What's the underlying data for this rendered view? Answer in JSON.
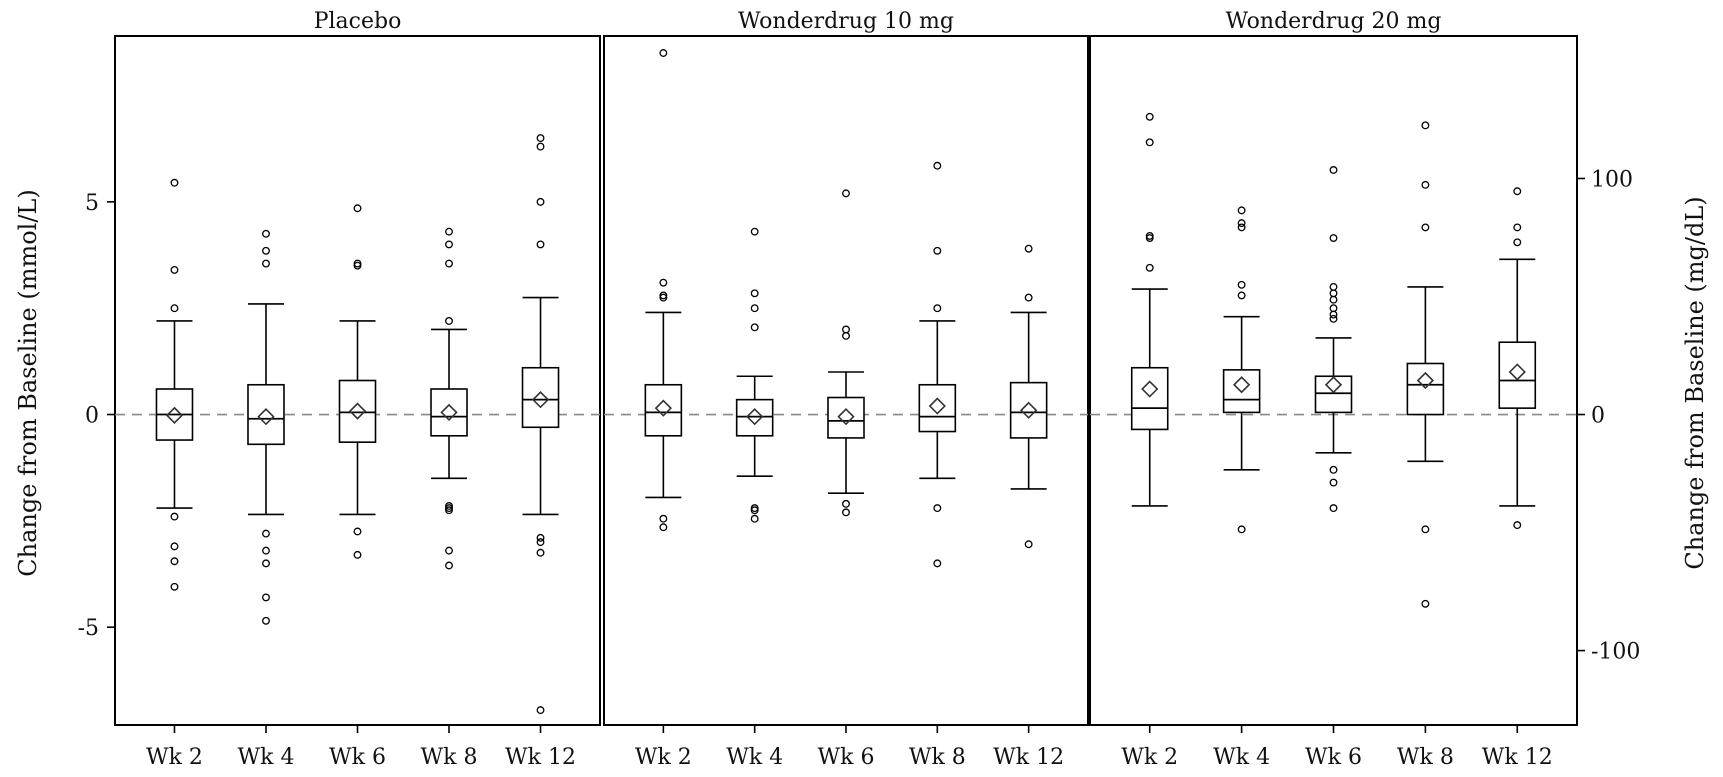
{
  "chart_data": {
    "type": "box",
    "panels": [
      {
        "title": "Placebo",
        "groups": [
          {
            "label": "Wk 2",
            "q1": -0.6,
            "median": 0.0,
            "q3": 0.6,
            "whisker_low": -2.2,
            "whisker_high": 2.2,
            "mean": -0.02,
            "outliers": [
              5.45,
              3.4,
              2.5,
              -2.4,
              -3.1,
              -3.45,
              -4.05
            ]
          },
          {
            "label": "Wk 4",
            "q1": -0.7,
            "median": -0.1,
            "q3": 0.7,
            "whisker_low": -2.35,
            "whisker_high": 2.6,
            "mean": -0.05,
            "outliers": [
              4.25,
              3.85,
              3.55,
              -2.8,
              -3.2,
              -3.5,
              -4.3,
              -4.85
            ]
          },
          {
            "label": "Wk 6",
            "q1": -0.65,
            "median": 0.05,
            "q3": 0.8,
            "whisker_low": -2.35,
            "whisker_high": 2.2,
            "mean": 0.08,
            "outliers": [
              4.85,
              3.55,
              3.5,
              -2.75,
              -3.3
            ]
          },
          {
            "label": "Wk 8",
            "q1": -0.5,
            "median": -0.05,
            "q3": 0.6,
            "whisker_low": -1.5,
            "whisker_high": 2.0,
            "mean": 0.05,
            "outliers": [
              4.3,
              4.0,
              3.55,
              2.2,
              -2.15,
              -2.2,
              -2.25,
              -3.2,
              -3.55
            ]
          },
          {
            "label": "Wk 12",
            "q1": -0.3,
            "median": 0.35,
            "q3": 1.1,
            "whisker_low": -2.35,
            "whisker_high": 2.75,
            "mean": 0.35,
            "outliers": [
              6.5,
              6.3,
              5.0,
              4.0,
              -2.9,
              -3.0,
              -3.25,
              -6.95
            ]
          }
        ]
      },
      {
        "title": "Wonderdrug 10 mg",
        "groups": [
          {
            "label": "Wk 2",
            "q1": -0.5,
            "median": 0.05,
            "q3": 0.7,
            "whisker_low": -1.95,
            "whisker_high": 2.4,
            "mean": 0.15,
            "outliers": [
              8.5,
              3.1,
              2.8,
              2.75,
              -2.45,
              -2.65
            ]
          },
          {
            "label": "Wk 4",
            "q1": -0.5,
            "median": -0.05,
            "q3": 0.35,
            "whisker_low": -1.45,
            "whisker_high": 0.9,
            "mean": -0.05,
            "outliers": [
              4.3,
              2.85,
              2.5,
              2.05,
              -2.2,
              -2.25,
              -2.45
            ]
          },
          {
            "label": "Wk 6",
            "q1": -0.55,
            "median": -0.15,
            "q3": 0.4,
            "whisker_low": -1.85,
            "whisker_high": 1.0,
            "mean": -0.05,
            "outliers": [
              5.2,
              2.0,
              1.85,
              -2.1,
              -2.3
            ]
          },
          {
            "label": "Wk 8",
            "q1": -0.4,
            "median": -0.05,
            "q3": 0.7,
            "whisker_low": -1.5,
            "whisker_high": 2.2,
            "mean": 0.2,
            "outliers": [
              5.85,
              3.85,
              2.5,
              -2.2,
              -3.5
            ]
          },
          {
            "label": "Wk 12",
            "q1": -0.55,
            "median": 0.05,
            "q3": 0.75,
            "whisker_low": -1.75,
            "whisker_high": 2.4,
            "mean": 0.1,
            "outliers": [
              3.9,
              2.75,
              -3.05
            ]
          }
        ]
      },
      {
        "title": "Wonderdrug 20 mg",
        "groups": [
          {
            "label": "Wk 2",
            "q1": -0.35,
            "median": 0.15,
            "q3": 1.1,
            "whisker_low": -2.15,
            "whisker_high": 2.95,
            "mean": 0.6,
            "outliers": [
              7.0,
              6.4,
              4.2,
              4.15,
              3.45
            ]
          },
          {
            "label": "Wk 4",
            "q1": 0.05,
            "median": 0.35,
            "q3": 1.05,
            "whisker_low": -1.3,
            "whisker_high": 2.3,
            "mean": 0.7,
            "outliers": [
              4.8,
              4.5,
              4.4,
              3.05,
              2.8,
              -2.7
            ]
          },
          {
            "label": "Wk 6",
            "q1": 0.05,
            "median": 0.5,
            "q3": 0.9,
            "whisker_low": -0.9,
            "whisker_high": 1.8,
            "mean": 0.7,
            "outliers": [
              5.75,
              4.15,
              3.0,
              2.85,
              2.7,
              2.5,
              2.35,
              2.25,
              -1.3,
              -1.6,
              -2.2
            ]
          },
          {
            "label": "Wk 8",
            "q1": 0.0,
            "median": 0.7,
            "q3": 1.2,
            "whisker_low": -1.1,
            "whisker_high": 3.0,
            "mean": 0.8,
            "outliers": [
              6.8,
              5.4,
              4.4,
              -2.7,
              -4.45
            ]
          },
          {
            "label": "Wk 12",
            "q1": 0.15,
            "median": 0.8,
            "q3": 1.7,
            "whisker_low": -2.15,
            "whisker_high": 3.65,
            "mean": 1.0,
            "outliers": [
              5.25,
              4.4,
              4.05,
              -2.6
            ]
          }
        ]
      }
    ],
    "y_left": {
      "label": "Change from Baseline (mmol/L)",
      "ticks": [
        5,
        0,
        -5
      ],
      "tick_labels": [
        "5",
        "0",
        "-5"
      ],
      "range": [
        -7.3,
        8.9
      ]
    },
    "y_right": {
      "label": "Change from Baseline  (mg/dL)",
      "ticks": [
        100,
        0,
        -100
      ],
      "tick_labels": [
        "100",
        "0",
        "-100"
      ],
      "mmol_per_unit": 0.0555
    },
    "reference_line": 0,
    "grid": false
  }
}
